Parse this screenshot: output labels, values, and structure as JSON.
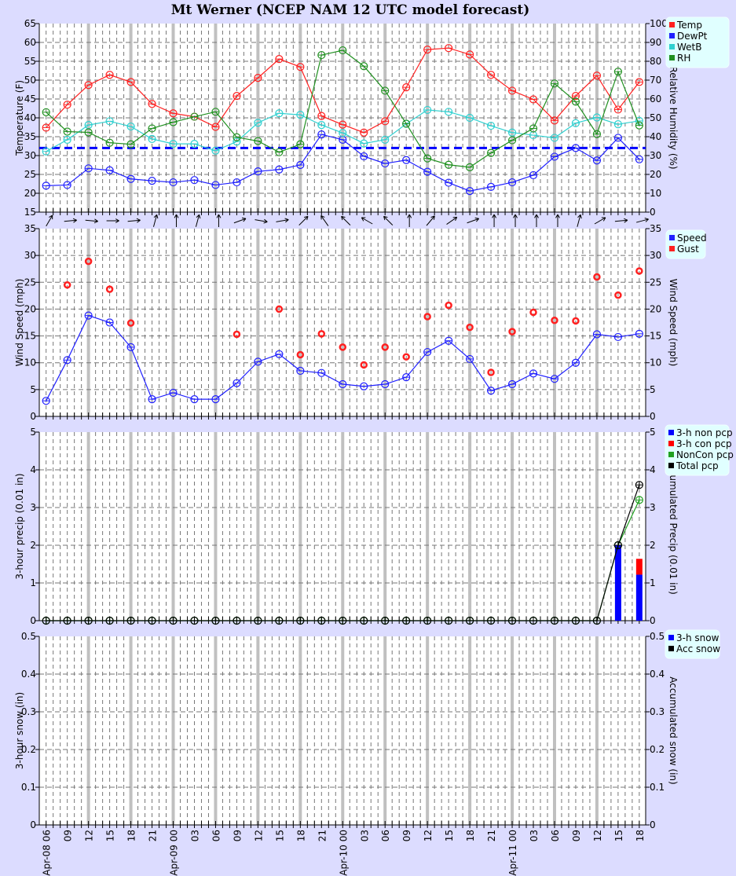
{
  "title": "Mt Werner (NCEP NAM 12 UTC model forecast)",
  "chart_data": [
    {
      "type": "line",
      "panel": "temperature",
      "ylabel": "Temperature (F)",
      "ylabel_right": "Relative Humidity (%)",
      "ylim": [
        15,
        65
      ],
      "ylim_right": [
        0,
        100
      ],
      "yticks": [
        15,
        20,
        25,
        30,
        35,
        40,
        45,
        50,
        55,
        60,
        65
      ],
      "yticks_right": [
        0,
        10,
        20,
        30,
        40,
        50,
        60,
        70,
        80,
        90,
        100
      ],
      "legend": [
        "Temp",
        "DewPt",
        "WetB",
        "RH"
      ],
      "legend_placement": "right-outside",
      "reference_line": {
        "value": 32,
        "color": "#0000ff",
        "style": "dashed"
      },
      "series": [
        {
          "name": "Temp",
          "color": "#ff2020",
          "axis": "left",
          "values": [
            37.4,
            43.5,
            48.7,
            51.4,
            49.5,
            43.7,
            41.2,
            40.3,
            37.6,
            45.8,
            50.6,
            55.6,
            53.5,
            40.5,
            38.2,
            36.1,
            39.1,
            48.1,
            58.1,
            58.5,
            56.8,
            51.4,
            47.2,
            44.9,
            39.3,
            45.8,
            51.2,
            42.2,
            49.5
          ]
        },
        {
          "name": "DewPt",
          "color": "#2020ff",
          "axis": "left",
          "values": [
            22.0,
            22.2,
            26.6,
            26.1,
            23.8,
            23.3,
            22.9,
            23.5,
            22.2,
            22.9,
            25.8,
            26.3,
            27.5,
            35.6,
            34.2,
            29.8,
            27.9,
            28.8,
            25.7,
            22.8,
            20.6,
            21.7,
            22.9,
            24.8,
            29.7,
            32.0,
            28.7,
            34.7,
            29.0
          ]
        },
        {
          "name": "WetB",
          "color": "#30d0d0",
          "axis": "left",
          "values": [
            31.1,
            34.2,
            38.1,
            39.1,
            37.7,
            34.4,
            33.1,
            33.1,
            31.3,
            33.7,
            38.7,
            41.2,
            40.8,
            38.1,
            36.0,
            33.2,
            34.2,
            38.4,
            42.1,
            41.6,
            40.0,
            37.9,
            36.1,
            35.4,
            34.7,
            38.6,
            40.1,
            38.3,
            39.2
          ]
        },
        {
          "name": "RH",
          "color": "#209020",
          "axis": "right",
          "values": [
            53.0,
            42.7,
            42.3,
            36.8,
            36.0,
            44.4,
            47.7,
            50.6,
            53.2,
            39.7,
            37.7,
            31.8,
            36.0,
            83.3,
            85.8,
            77.4,
            64.4,
            46.9,
            28.5,
            25.1,
            23.8,
            31.4,
            38.1,
            44.4,
            68.2,
            58.6,
            41.4,
            74.5,
            46.0
          ]
        }
      ],
      "wind_direction_arrows_toward_deg": [
        30,
        85,
        95,
        90,
        85,
        15,
        0,
        15,
        0,
        70,
        100,
        80,
        45,
        325,
        315,
        300,
        315,
        0,
        40,
        55,
        70,
        0,
        0,
        0,
        0,
        15,
        60,
        85,
        75
      ]
    },
    {
      "type": "line",
      "panel": "wind",
      "ylabel": "Wind Speed (mph)",
      "ylabel_right": "Wind Speed (mph)",
      "ylim": [
        0,
        35
      ],
      "yticks": [
        0,
        5,
        10,
        15,
        20,
        25,
        30,
        35
      ],
      "legend": [
        "Speed",
        "Gust"
      ],
      "legend_placement": "right-outside",
      "series": [
        {
          "name": "Speed",
          "color": "#2020ff",
          "mode": "line",
          "values": [
            2.9,
            10.5,
            18.8,
            17.5,
            12.9,
            3.2,
            4.4,
            3.2,
            3.2,
            6.2,
            10.2,
            11.6,
            8.5,
            8.1,
            6.0,
            5.6,
            6.0,
            7.3,
            12.0,
            14.1,
            10.7,
            4.8,
            6.0,
            8.0,
            7.0,
            10.0,
            15.3,
            14.8,
            15.4
          ]
        },
        {
          "name": "Gust",
          "color": "#ff2020",
          "mode": "markers",
          "values": [
            null,
            24.5,
            28.9,
            23.7,
            17.4,
            null,
            null,
            null,
            null,
            15.3,
            null,
            20.0,
            11.5,
            15.4,
            12.9,
            9.6,
            12.9,
            11.1,
            18.6,
            20.7,
            16.6,
            8.2,
            15.8,
            19.4,
            17.9,
            17.8,
            26.0,
            22.6,
            27.1
          ]
        }
      ]
    },
    {
      "type": "bar",
      "panel": "precip",
      "ylabel": "3-hour precip (0.01 in)",
      "ylabel_right": "Accumulated Precip (0.01 in)",
      "ylim": [
        0,
        5
      ],
      "yticks": [
        0,
        1,
        2,
        3,
        4,
        5
      ],
      "legend": [
        "3-h non pcp",
        "3-h con pcp",
        "NonCon pcp",
        "Total pcp"
      ],
      "legend_placement": "right-outside",
      "series": [
        {
          "name": "3-h non pcp",
          "color": "#0000ff",
          "mode": "bar",
          "values": [
            0,
            0,
            0,
            0,
            0,
            0,
            0,
            0,
            0,
            0,
            0,
            0,
            0,
            0,
            0,
            0,
            0,
            0,
            0,
            0,
            0,
            0,
            0,
            0,
            0,
            0,
            0,
            2.0,
            1.22
          ]
        },
        {
          "name": "3-h con pcp",
          "color": "#ff0000",
          "mode": "bar-stacked",
          "values": [
            0,
            0,
            0,
            0,
            0,
            0,
            0,
            0,
            0,
            0,
            0,
            0,
            0,
            0,
            0,
            0,
            0,
            0,
            0,
            0,
            0,
            0,
            0,
            0,
            0,
            0,
            0,
            0,
            0.42
          ]
        },
        {
          "name": "NonCon pcp",
          "color": "#20a020",
          "mode": "line",
          "values": [
            0,
            0,
            0,
            0,
            0,
            0,
            0,
            0,
            0,
            0,
            0,
            0,
            0,
            0,
            0,
            0,
            0,
            0,
            0,
            0,
            0,
            0,
            0,
            0,
            0,
            0,
            0,
            2.0,
            3.2
          ]
        },
        {
          "name": "Total pcp",
          "color": "#000000",
          "mode": "line",
          "values": [
            0,
            0,
            0,
            0,
            0,
            0,
            0,
            0,
            0,
            0,
            0,
            0,
            0,
            0,
            0,
            0,
            0,
            0,
            0,
            0,
            0,
            0,
            0,
            0,
            0,
            0,
            0,
            2.0,
            3.6
          ]
        }
      ]
    },
    {
      "type": "bar",
      "panel": "snow",
      "ylabel": "3-hour snow (in)",
      "ylabel_right": "Accumulated snow (in)",
      "ylim": [
        0,
        0.5
      ],
      "yticks": [
        0,
        0.1,
        0.2,
        0.3,
        0.4,
        0.5
      ],
      "legend": [
        "3-h snow",
        "Acc snow"
      ],
      "legend_placement": "right-outside",
      "legend_colors": [
        "#0000ff",
        "#000000"
      ],
      "series": [
        {
          "name": "3-h snow",
          "color": "#0000ff",
          "mode": "bar",
          "values": [
            0,
            0,
            0,
            0,
            0,
            0,
            0,
            0,
            0,
            0,
            0,
            0,
            0,
            0,
            0,
            0,
            0,
            0,
            0,
            0,
            0,
            0,
            0,
            0,
            0,
            0,
            0,
            0,
            0
          ]
        },
        {
          "name": "Acc snow",
          "color": "#000000",
          "mode": "none",
          "values": [
            0,
            0,
            0,
            0,
            0,
            0,
            0,
            0,
            0,
            0,
            0,
            0,
            0,
            0,
            0,
            0,
            0,
            0,
            0,
            0,
            0,
            0,
            0,
            0,
            0,
            0,
            0,
            0,
            0
          ]
        }
      ]
    }
  ],
  "x_tick_labels": [
    "Apr-08 06",
    "09",
    "12",
    "15",
    "18",
    "21",
    "Apr-09 00",
    "03",
    "06",
    "09",
    "12",
    "15",
    "18",
    "21",
    "Apr-10 00",
    "03",
    "06",
    "09",
    "12",
    "15",
    "18",
    "21",
    "Apr-11 00",
    "03",
    "06",
    "09",
    "12",
    "15",
    "18"
  ],
  "colors": {
    "background": "#dcdcff",
    "plot": "#ffffff",
    "legend_bg": "#e0ffff",
    "synoptic_gridline": "#c0c0c0"
  }
}
